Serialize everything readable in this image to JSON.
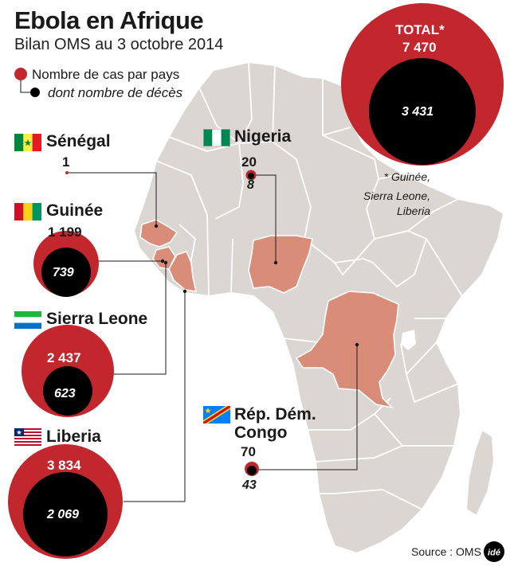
{
  "header": {
    "title": "Ebola en Afrique",
    "subtitle": "Bilan OMS au 3 octobre 2014"
  },
  "legend": {
    "cases_label": "Nombre de cas par pays",
    "deaths_label": "dont nombre de décès",
    "cases_color": "#c1272d",
    "deaths_color": "#000000"
  },
  "total": {
    "label": "TOTAL*",
    "cases": "7 470",
    "deaths": "3 431",
    "note_lines": [
      "* Guinée,",
      "Sierra Leone,",
      "Liberia"
    ]
  },
  "countries": [
    {
      "name": "Sénégal",
      "cases": "1",
      "deaths": "",
      "flag": "senegal-flag-icon"
    },
    {
      "name": "Nigeria",
      "cases": "20",
      "deaths": "8",
      "flag": "nigeria-flag-icon"
    },
    {
      "name": "Guinée",
      "cases": "1 199",
      "deaths": "739",
      "flag": "guinea-flag-icon"
    },
    {
      "name": "Sierra Leone",
      "cases": "2 437",
      "deaths": "623",
      "flag": "sierra-leone-flag-icon"
    },
    {
      "name": "Liberia",
      "cases": "3 834",
      "deaths": "2 069",
      "flag": "liberia-flag-icon"
    },
    {
      "name_lines": [
        "Rép. Dém.",
        "Congo"
      ],
      "cases": "70",
      "deaths": "43",
      "flag": "drc-flag-icon"
    }
  ],
  "colors": {
    "land": "#dcd6d3",
    "highlight": "#d98d78",
    "border": "#ffffff"
  },
  "footer": {
    "source": "Source : OMS",
    "logo": "idé"
  }
}
